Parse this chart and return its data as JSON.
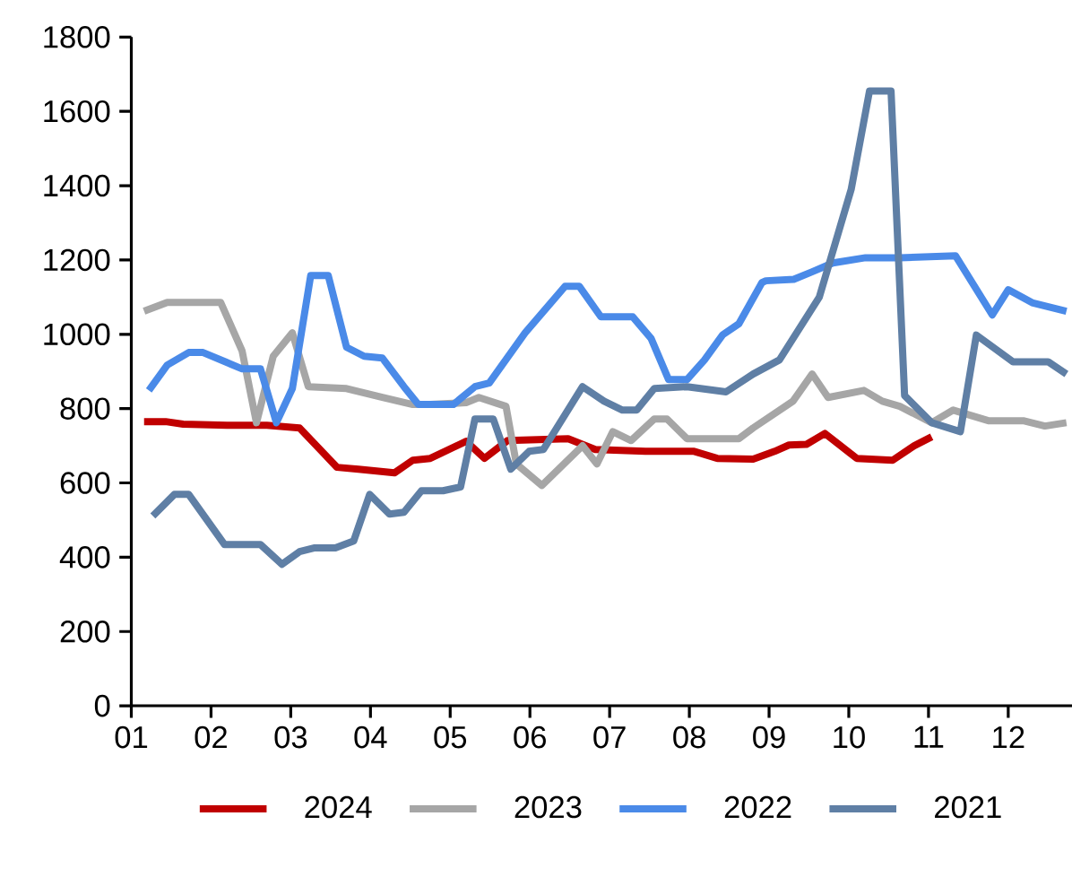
{
  "chart_data": {
    "type": "line",
    "legend": "bottom",
    "line_style": "solid",
    "xlim": [
      1,
      12.8
    ],
    "ylim": [
      0,
      1800
    ],
    "xticks": [
      {
        "value": 1,
        "label": "01"
      },
      {
        "value": 2,
        "label": "02"
      },
      {
        "value": 3,
        "label": "03"
      },
      {
        "value": 4,
        "label": "04"
      },
      {
        "value": 5,
        "label": "05"
      },
      {
        "value": 6,
        "label": "06"
      },
      {
        "value": 7,
        "label": "07"
      },
      {
        "value": 8,
        "label": "08"
      },
      {
        "value": 9,
        "label": "09"
      },
      {
        "value": 10,
        "label": "10"
      },
      {
        "value": 11,
        "label": "11"
      },
      {
        "value": 12,
        "label": "12"
      }
    ],
    "yticks": [
      0,
      200,
      400,
      600,
      800,
      1000,
      1200,
      1400,
      1600,
      1800
    ],
    "series": [
      {
        "name": "2024",
        "color": "#c00000",
        "x": [
          1.16,
          1.43,
          1.65,
          2.2,
          2.7,
          3.11,
          3.58,
          3.85,
          4.3,
          4.53,
          4.75,
          5.2,
          5.43,
          5.72,
          6.48,
          6.82,
          7.45,
          8.06,
          8.35,
          8.8,
          9.07,
          9.25,
          9.47,
          9.7,
          10.1,
          10.55,
          10.82,
          11.04
        ],
        "values": [
          765,
          765,
          758,
          755,
          755,
          748,
          642,
          637,
          627,
          661,
          666,
          712,
          666,
          714,
          719,
          690,
          685,
          685,
          666,
          664,
          685,
          702,
          704,
          733,
          666,
          661,
          700,
          724
        ]
      },
      {
        "name": "2023",
        "color": "#a6a6a6",
        "x": [
          1.16,
          1.45,
          2.12,
          2.39,
          2.57,
          2.78,
          3.02,
          3.22,
          3.7,
          4.15,
          4.53,
          4.75,
          5.2,
          5.36,
          5.7,
          5.83,
          6.15,
          6.66,
          6.84,
          7.04,
          7.27,
          7.56,
          7.72,
          7.97,
          8.62,
          8.8,
          9.3,
          9.54,
          9.74,
          10.19,
          10.42,
          10.64,
          11.04,
          11.31,
          11.76,
          12.2,
          12.46,
          12.73
        ],
        "values": [
          1062,
          1086,
          1086,
          955,
          762,
          941,
          1004,
          859,
          854,
          830,
          811,
          811,
          816,
          830,
          806,
          651,
          593,
          700,
          651,
          738,
          714,
          772,
          772,
          719,
          719,
          748,
          820,
          893,
          830,
          849,
          820,
          806,
          762,
          796,
          767,
          767,
          753,
          762
        ]
      },
      {
        "name": "2022",
        "color": "#4a8ae8",
        "x": [
          1.22,
          1.45,
          1.72,
          1.9,
          2.39,
          2.62,
          2.82,
          3.02,
          3.25,
          3.47,
          3.7,
          3.92,
          4.15,
          4.42,
          4.6,
          5.04,
          5.31,
          5.49,
          5.94,
          6.44,
          6.62,
          6.89,
          7.29,
          7.52,
          7.74,
          7.97,
          8.19,
          8.42,
          8.62,
          8.91,
          8.96,
          9.31,
          9.54,
          9.8,
          10.21,
          10.64,
          11.34,
          11.8,
          12.0,
          12.3,
          12.73
        ],
        "values": [
          849,
          917,
          951,
          951,
          907,
          907,
          762,
          854,
          1158,
          1158,
          965,
          941,
          936,
          859,
          811,
          811,
          859,
          869,
          1004,
          1129,
          1129,
          1047,
          1047,
          989,
          878,
          878,
          931,
          999,
          1028,
          1139,
          1144,
          1148,
          1168,
          1192,
          1206,
          1206,
          1211,
          1052,
          1120,
          1085,
          1062
        ]
      },
      {
        "name": "2021",
        "color": "#5f7fa5",
        "x": [
          1.27,
          1.54,
          1.72,
          2.17,
          2.62,
          2.89,
          3.11,
          3.29,
          3.56,
          3.79,
          3.99,
          4.24,
          4.42,
          4.64,
          4.91,
          5.13,
          5.31,
          5.54,
          5.76,
          5.99,
          6.17,
          6.66,
          6.93,
          7.16,
          7.34,
          7.56,
          7.97,
          8.46,
          8.8,
          9.13,
          9.63,
          10.03,
          10.26,
          10.53,
          10.7,
          11.04,
          11.4,
          11.6,
          12.06,
          12.5,
          12.73
        ],
        "values": [
          511,
          569,
          569,
          434,
          434,
          381,
          415,
          425,
          425,
          444,
          569,
          516,
          521,
          579,
          579,
          589,
          772,
          772,
          637,
          685,
          690,
          859,
          820,
          796,
          796,
          854,
          859,
          845,
          893,
          931,
          1100,
          1390,
          1655,
          1655,
          835,
          762,
          738,
          998,
          926,
          926,
          893
        ]
      }
    ]
  }
}
